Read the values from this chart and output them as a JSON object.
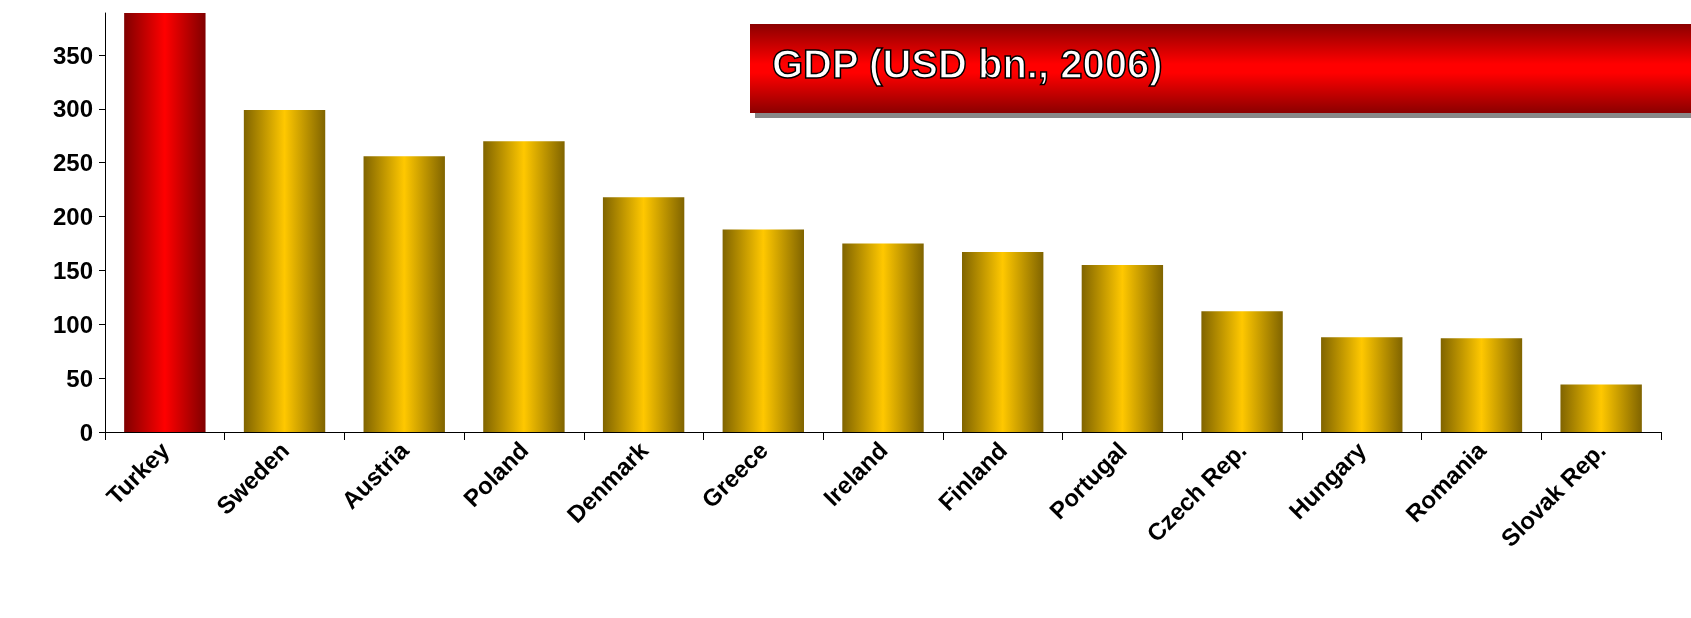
{
  "chart_data": {
    "type": "bar",
    "title": "GDP  (USD bn., 2006)",
    "categories": [
      "Turkey",
      "Sweden",
      "Austria",
      "Poland",
      "Denmark",
      "Greece",
      "Ireland",
      "Finland",
      "Portugal",
      "Czech Rep.",
      "Hungary",
      "Romania",
      "Slovak Rep."
    ],
    "values": [
      389,
      299,
      256,
      270,
      218,
      188,
      175,
      167,
      155,
      112,
      88,
      87,
      44
    ],
    "colors": [
      "#ff0000",
      "#ffc800",
      "#ffc800",
      "#ffc800",
      "#ffc800",
      "#ffc800",
      "#ffc800",
      "#ffc800",
      "#ffc800",
      "#ffc800",
      "#ffc800",
      "#ffc800",
      "#ffc800"
    ],
    "ylim": [
      0,
      389
    ],
    "yticks": [
      0,
      50,
      100,
      150,
      200,
      250,
      300,
      350
    ],
    "grid": false
  }
}
